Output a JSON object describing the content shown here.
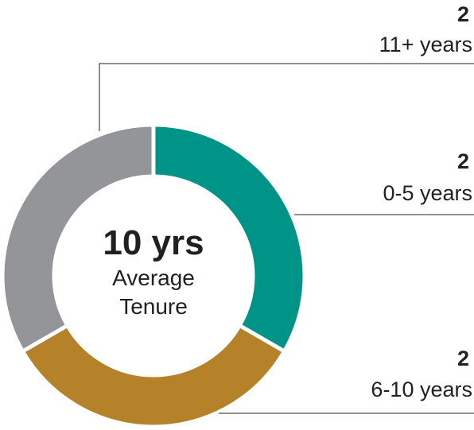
{
  "chart_data": {
    "type": "donut",
    "center_label": "10 yrs",
    "center_sublabel": "Average Tenure",
    "categories": [
      "0-5 years",
      "6-10 years",
      "11+ years"
    ],
    "values": [
      2,
      2,
      2
    ],
    "colors": [
      "#009387",
      "#b5822a",
      "#939598"
    ]
  }
}
